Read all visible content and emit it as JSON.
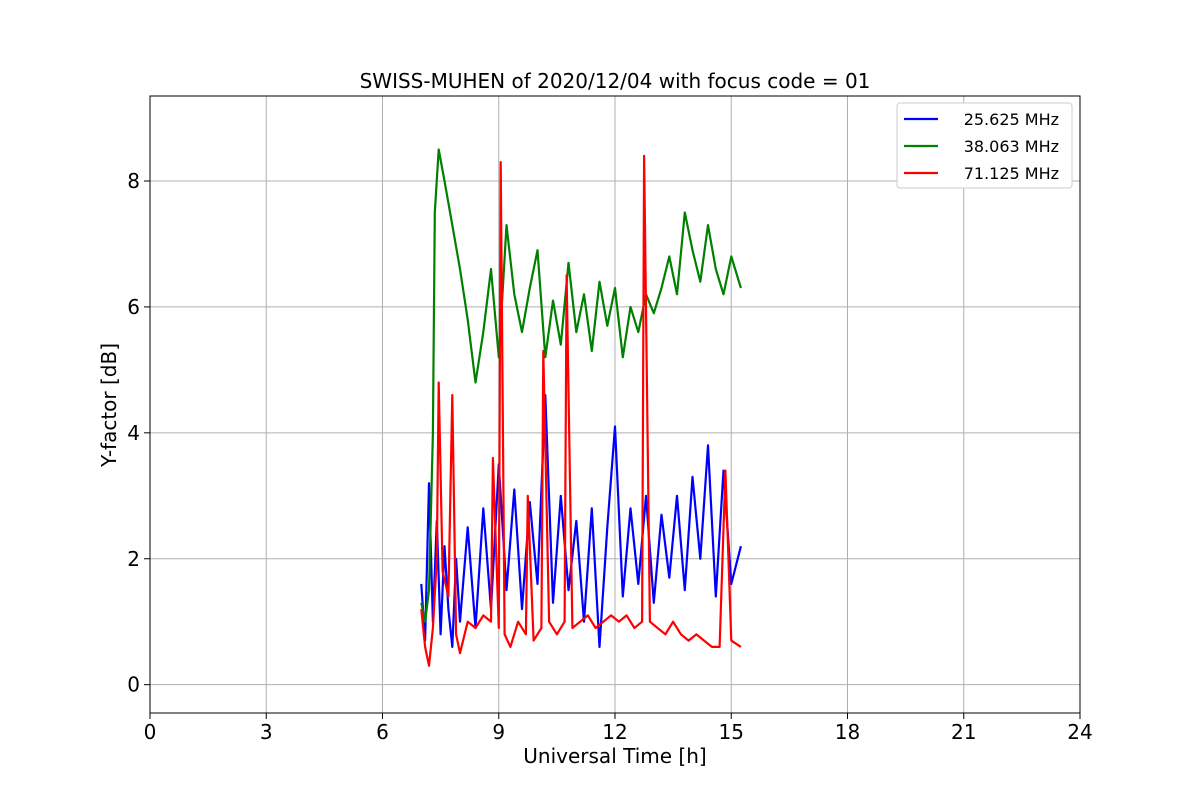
{
  "chart_data": {
    "type": "line",
    "title": "SWISS-MUHEN of 2020/12/04 with focus code = 01",
    "xlabel": "Universal Time [h]",
    "ylabel": "Y-factor [dB]",
    "xlim": [
      0,
      24
    ],
    "ylim": [
      -0.45,
      9.35
    ],
    "xticks": [
      0,
      3,
      6,
      9,
      12,
      15,
      18,
      21,
      24
    ],
    "yticks": [
      0,
      2,
      4,
      6,
      8
    ],
    "grid": true,
    "legend_position": "top-right",
    "series": [
      {
        "name": "25.625 MHz",
        "color": "#0000ff",
        "x": [
          7.0,
          7.1,
          7.2,
          7.3,
          7.4,
          7.5,
          7.6,
          7.7,
          7.8,
          7.9,
          8.0,
          8.2,
          8.4,
          8.6,
          8.8,
          9.0,
          9.2,
          9.4,
          9.6,
          9.8,
          10.0,
          10.2,
          10.4,
          10.6,
          10.8,
          11.0,
          11.2,
          11.4,
          11.6,
          11.8,
          12.0,
          12.2,
          12.4,
          12.6,
          12.8,
          13.0,
          13.2,
          13.4,
          13.6,
          13.8,
          14.0,
          14.2,
          14.4,
          14.6,
          14.8,
          15.0,
          15.25
        ],
        "values": [
          1.6,
          0.7,
          3.2,
          1.0,
          2.6,
          0.8,
          2.2,
          1.2,
          0.6,
          2.0,
          1.0,
          2.5,
          0.9,
          2.8,
          1.2,
          3.5,
          1.5,
          3.1,
          1.2,
          2.9,
          1.6,
          4.6,
          1.3,
          3.0,
          1.5,
          2.6,
          1.0,
          2.8,
          0.6,
          2.5,
          4.1,
          1.4,
          2.8,
          1.6,
          3.0,
          1.3,
          2.7,
          1.7,
          3.0,
          1.5,
          3.3,
          2.0,
          3.8,
          1.4,
          3.4,
          1.6,
          2.2
        ]
      },
      {
        "name": "38.063 MHz",
        "color": "#008000",
        "x": [
          7.0,
          7.1,
          7.2,
          7.3,
          7.35,
          7.45,
          7.6,
          7.8,
          8.0,
          8.2,
          8.4,
          8.6,
          8.8,
          9.0,
          9.2,
          9.4,
          9.6,
          9.8,
          10.0,
          10.2,
          10.4,
          10.6,
          10.8,
          11.0,
          11.2,
          11.4,
          11.6,
          11.8,
          12.0,
          12.2,
          12.4,
          12.6,
          12.8,
          13.0,
          13.2,
          13.4,
          13.6,
          13.8,
          14.0,
          14.2,
          14.4,
          14.6,
          14.8,
          15.0,
          15.25
        ],
        "values": [
          1.3,
          1.0,
          1.5,
          4.0,
          7.5,
          8.5,
          8.0,
          7.3,
          6.6,
          5.8,
          4.8,
          5.6,
          6.6,
          5.2,
          7.3,
          6.2,
          5.6,
          6.3,
          6.9,
          5.2,
          6.1,
          5.4,
          6.7,
          5.6,
          6.2,
          5.3,
          6.4,
          5.7,
          6.3,
          5.2,
          6.0,
          5.6,
          6.2,
          5.9,
          6.3,
          6.8,
          6.2,
          7.5,
          6.9,
          6.4,
          7.3,
          6.6,
          6.2,
          6.8,
          6.3
        ]
      },
      {
        "name": "71.125 MHz",
        "color": "#ff0000",
        "x": [
          7.0,
          7.1,
          7.2,
          7.3,
          7.4,
          7.45,
          7.55,
          7.7,
          7.8,
          7.9,
          8.0,
          8.2,
          8.4,
          8.6,
          8.8,
          8.85,
          9.0,
          9.05,
          9.15,
          9.3,
          9.5,
          9.7,
          9.75,
          9.9,
          10.1,
          10.15,
          10.3,
          10.5,
          10.7,
          10.75,
          10.9,
          11.1,
          11.3,
          11.5,
          11.7,
          11.9,
          12.1,
          12.3,
          12.5,
          12.7,
          12.75,
          12.9,
          13.1,
          13.3,
          13.5,
          13.7,
          13.9,
          14.1,
          14.3,
          14.5,
          14.7,
          14.85,
          15.0,
          15.25
        ],
        "values": [
          1.2,
          0.6,
          0.3,
          0.9,
          2.0,
          4.8,
          1.8,
          1.4,
          4.6,
          0.8,
          0.5,
          1.0,
          0.9,
          1.1,
          1.0,
          3.6,
          0.9,
          8.3,
          0.8,
          0.6,
          1.0,
          0.8,
          3.0,
          0.7,
          0.9,
          5.3,
          1.0,
          0.8,
          1.0,
          6.5,
          0.9,
          1.0,
          1.1,
          0.9,
          1.0,
          1.1,
          1.0,
          1.1,
          0.9,
          1.0,
          8.4,
          1.0,
          0.9,
          0.8,
          1.0,
          0.8,
          0.7,
          0.8,
          0.7,
          0.6,
          0.6,
          3.4,
          0.7,
          0.6
        ]
      }
    ]
  }
}
